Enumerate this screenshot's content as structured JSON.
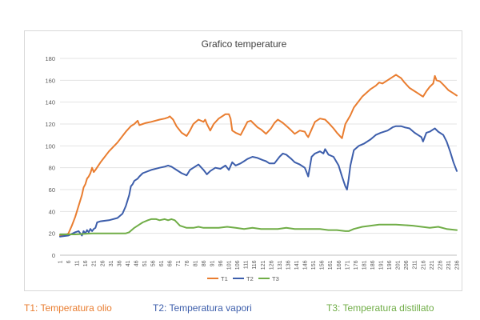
{
  "chart_data": {
    "type": "line",
    "title": "Grafico temperature",
    "xlabel": "",
    "ylabel": "",
    "ylim": [
      0,
      180
    ],
    "yticks": [
      0,
      20,
      40,
      60,
      80,
      100,
      120,
      140,
      160,
      180
    ],
    "x_tick_labels": [
      "1",
      "6",
      "11",
      "16",
      "21",
      "26",
      "31",
      "36",
      "41",
      "46",
      "51",
      "56",
      "61",
      "66",
      "71",
      "76",
      "81",
      "86",
      "91",
      "96",
      "101",
      "106",
      "111",
      "116",
      "121",
      "126",
      "131",
      "136",
      "141",
      "146",
      "151",
      "156",
      "161",
      "166",
      "171",
      "176",
      "181",
      "186",
      "191",
      "196",
      "201",
      "206",
      "211",
      "216",
      "221",
      "226",
      "231",
      "236"
    ],
    "grid": "horizontal",
    "legend_position": "bottom",
    "series": [
      {
        "name": "T1",
        "color": "#e97d30",
        "x": [
          1,
          4,
          6,
          8,
          10,
          12,
          14,
          15,
          16,
          17,
          18,
          19,
          20,
          21,
          22,
          25,
          30,
          35,
          40,
          43,
          45,
          47,
          48,
          50,
          52,
          55,
          60,
          63,
          65,
          66,
          68,
          70,
          73,
          76,
          78,
          80,
          83,
          86,
          87,
          88,
          90,
          92,
          95,
          98,
          99,
          101,
          102,
          103,
          105,
          108,
          110,
          112,
          114,
          116,
          118,
          120,
          123,
          126,
          128,
          130,
          133,
          136,
          138,
          140,
          143,
          146,
          147,
          148,
          150,
          152,
          155,
          158,
          160,
          163,
          165,
          168,
          170,
          173,
          175,
          180,
          185,
          188,
          190,
          192,
          195,
          198,
          200,
          201,
          203,
          205,
          208,
          210,
          213,
          215,
          216,
          218,
          220,
          222,
          223,
          224,
          226,
          228,
          231,
          234,
          236
        ],
        "y": [
          18,
          18,
          20,
          27,
          35,
          45,
          55,
          62,
          65,
          70,
          72,
          75,
          80,
          76,
          78,
          85,
          95,
          103,
          113,
          118,
          120,
          123,
          119,
          120,
          121,
          122,
          124,
          125,
          126,
          127,
          124,
          118,
          112,
          109,
          114,
          120,
          124,
          122,
          124,
          120,
          114,
          120,
          125,
          128,
          129,
          129,
          125,
          114,
          112,
          110,
          116,
          122,
          123,
          120,
          117,
          115,
          111,
          116,
          121,
          124,
          121,
          117,
          114,
          111,
          114,
          113,
          110,
          108,
          115,
          122,
          125,
          124,
          121,
          116,
          112,
          107,
          120,
          128,
          135,
          145,
          152,
          155,
          158,
          157,
          160,
          163,
          165,
          164,
          162,
          158,
          153,
          151,
          148,
          146,
          145,
          150,
          154,
          157,
          164,
          160,
          159,
          156,
          151,
          148,
          146
        ]
      },
      {
        "name": "T2",
        "color": "#3d5eab",
        "x": [
          1,
          6,
          10,
          12,
          14,
          15,
          16,
          17,
          18,
          19,
          20,
          21,
          22,
          23,
          25,
          30,
          35,
          38,
          40,
          42,
          43,
          44,
          45,
          47,
          48,
          50,
          55,
          60,
          63,
          65,
          67,
          70,
          73,
          76,
          78,
          80,
          83,
          86,
          88,
          90,
          93,
          96,
          99,
          101,
          103,
          105,
          108,
          110,
          112,
          115,
          118,
          121,
          123,
          125,
          128,
          131,
          133,
          135,
          138,
          140,
          143,
          146,
          147,
          148,
          150,
          152,
          155,
          157,
          158,
          160,
          163,
          166,
          168,
          170,
          171,
          172,
          173,
          175,
          178,
          181,
          185,
          188,
          191,
          195,
          198,
          200,
          203,
          205,
          208,
          211,
          213,
          215,
          216,
          218,
          220,
          222,
          223,
          225,
          228,
          230,
          232,
          234,
          236
        ],
        "y": [
          17,
          18,
          21,
          22,
          18,
          22,
          20,
          23,
          21,
          24,
          22,
          24,
          25,
          30,
          31,
          32,
          34,
          38,
          45,
          55,
          63,
          65,
          68,
          70,
          72,
          75,
          78,
          80,
          81,
          82,
          81,
          78,
          75,
          73,
          78,
          80,
          83,
          78,
          74,
          77,
          80,
          79,
          82,
          78,
          85,
          82,
          84,
          86,
          88,
          90,
          89,
          87,
          86,
          84,
          84,
          90,
          93,
          92,
          88,
          85,
          83,
          80,
          76,
          72,
          90,
          93,
          95,
          93,
          97,
          92,
          90,
          82,
          72,
          63,
          60,
          70,
          82,
          96,
          100,
          102,
          106,
          110,
          112,
          114,
          117,
          118,
          118,
          117,
          116,
          112,
          110,
          108,
          104,
          112,
          113,
          115,
          116,
          113,
          110,
          104,
          95,
          85,
          77
        ]
      },
      {
        "name": "T3",
        "color": "#70ad47",
        "x": [
          1,
          10,
          20,
          30,
          38,
          40,
          42,
          45,
          48,
          50,
          53,
          55,
          58,
          60,
          63,
          65,
          67,
          69,
          72,
          76,
          80,
          83,
          86,
          90,
          95,
          100,
          105,
          110,
          115,
          120,
          125,
          130,
          135,
          140,
          145,
          150,
          155,
          160,
          165,
          170,
          172,
          175,
          180,
          185,
          190,
          195,
          200,
          210,
          220,
          225,
          230,
          236
        ],
        "y": [
          19,
          19,
          20,
          20,
          20,
          20,
          21,
          25,
          28,
          30,
          32,
          33,
          33,
          32,
          33,
          32,
          33,
          32,
          27,
          25,
          25,
          26,
          25,
          25,
          25,
          26,
          25,
          24,
          25,
          24,
          24,
          24,
          25,
          24,
          24,
          24,
          24,
          23,
          23,
          22,
          22,
          24,
          26,
          27,
          28,
          28,
          28,
          27,
          25,
          26,
          24,
          23
        ]
      }
    ]
  },
  "bottom_labels": {
    "t1": "T1: Temperatura olio",
    "t2": "T2: Temperatura vapori",
    "t3": "T3: Temperatura distillato"
  }
}
